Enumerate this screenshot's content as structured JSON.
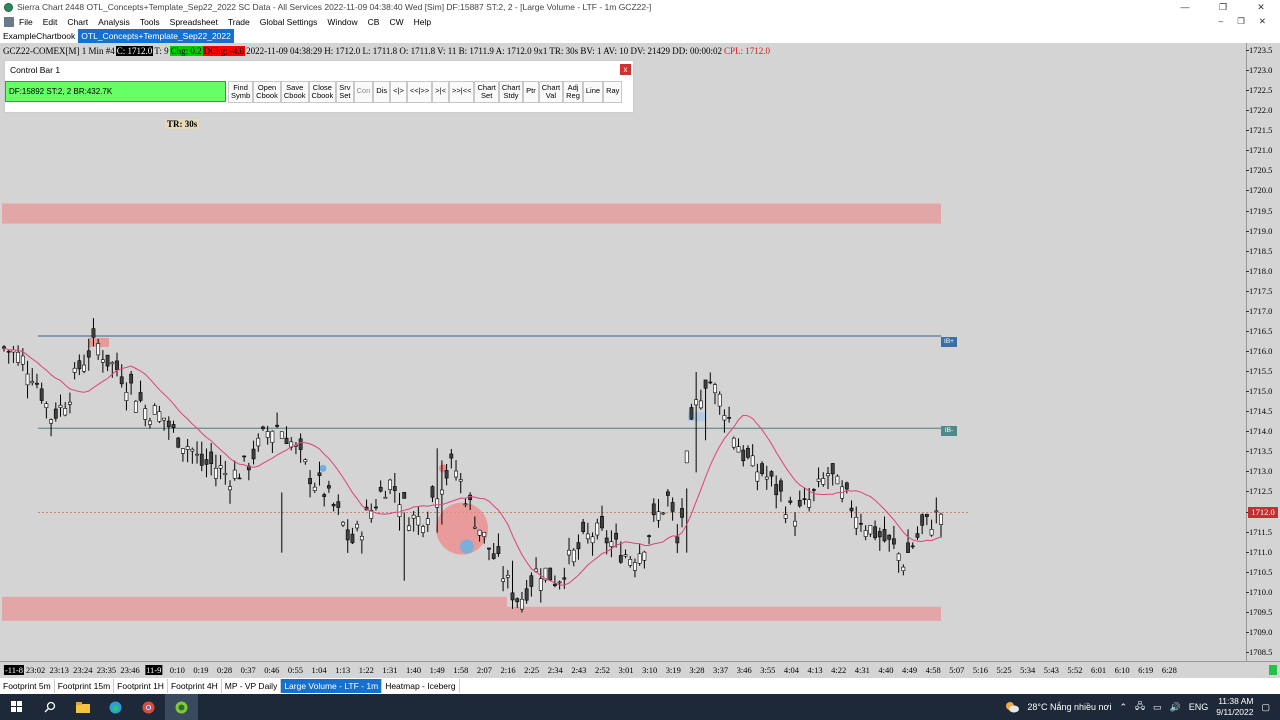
{
  "window": {
    "title": "Sierra Chart 2448 OTL_Concepts+Template_Sep22_2022  SC Data - All Services 2022-11-09  04:38:40 Wed [Sim]  DF:15887  ST:2, 2 - [Large Volume - LTF - 1m GCZ22-]",
    "controls": [
      "—",
      "❐",
      "✕"
    ]
  },
  "menu": {
    "items": [
      "File",
      "Edit",
      "Chart",
      "Analysis",
      "Tools",
      "Spreadsheet",
      "Trade",
      "Global Settings",
      "Window",
      "CB",
      "CW",
      "Help"
    ],
    "right_controls": [
      "–",
      "❐",
      "✕"
    ]
  },
  "chartbook_tabs": [
    {
      "label": "ExampleChartbook",
      "active": false
    },
    {
      "label": "OTL_Concepts+Template_Sep22_2022",
      "active": true
    }
  ],
  "infobar": {
    "symbol": "GCZ22-COMEX[M]  1 Min  #4",
    "close": "C: 1712.0",
    "t": "T: 9",
    "chg": "Chg: 0.2",
    "dchg": "DChg: -4.0",
    "details": "2022-11-09  04:38:29 H: 1712.0 L: 1711.8 O: 1711.8 V: 11 B: 1711.9 A: 1712.0 9x1 TR: 30s BV: 1 AV: 10 DV: 21429 DD: 00:00:02",
    "cpl": "CPL: 1712.0"
  },
  "control_bar": {
    "title": "Control Bar 1",
    "close": "x",
    "status": "DF:15892  ST:2, 2  BR:432.7K",
    "buttons": [
      {
        "label": "Find Symb",
        "two": [
          "Find",
          "Symb"
        ]
      },
      {
        "label": "Open Cbook",
        "two": [
          "Open",
          "Cbook"
        ]
      },
      {
        "label": "Save Cbook",
        "two": [
          "Save",
          "Cbook"
        ]
      },
      {
        "label": "Close Cbook",
        "two": [
          "Close",
          "Cbook"
        ]
      },
      {
        "label": "Srv Set",
        "two": [
          "Srv",
          "Set"
        ]
      },
      {
        "label": "Con",
        "dim": true
      },
      {
        "label": "Dis"
      },
      {
        "label": "<|>"
      },
      {
        "label": "<<|>>"
      },
      {
        "label": ">|<"
      },
      {
        "label": ">>|<<"
      },
      {
        "label": "Chart Set",
        "two": [
          "Chart",
          "Set"
        ]
      },
      {
        "label": "Chart Stdy",
        "two": [
          "Chart",
          "Stdy"
        ]
      },
      {
        "label": "Ptr"
      },
      {
        "label": "Chart Val",
        "two": [
          "Chart",
          "Val"
        ]
      },
      {
        "label": "Adj Reg",
        "two": [
          "Adj",
          "Reg"
        ]
      },
      {
        "label": "Line"
      },
      {
        "label": "Ray"
      }
    ]
  },
  "tr_label": "TR: 30s",
  "price_axis": {
    "ticks": [
      "1723.5",
      "1723.0",
      "1722.5",
      "1722.0",
      "1721.5",
      "1721.0",
      "1720.5",
      "1720.0",
      "1719.5",
      "1719.0",
      "1718.5",
      "1718.0",
      "1717.5",
      "1717.0",
      "1716.5",
      "1716.0",
      "1715.5",
      "1715.0",
      "1714.5",
      "1714.0",
      "1713.5",
      "1713.0",
      "1712.5",
      "1712.0",
      "1711.5",
      "1711.0",
      "1710.5",
      "1710.0",
      "1709.5",
      "1709.0",
      "1708.5"
    ],
    "current": "1712.0",
    "ylim": [
      1708.3,
      1723.7
    ]
  },
  "time_axis": {
    "ticks": [
      "-11-8",
      "23:02",
      "23:13",
      "23:24",
      "23:35",
      "23:46",
      "11-9",
      "0:10",
      "0:19",
      "0:28",
      "0:37",
      "0:46",
      "0:55",
      "1:04",
      "1:13",
      "1:22",
      "1:31",
      "1:40",
      "1:49",
      "1:58",
      "2:07",
      "2:16",
      "2:25",
      "2:34",
      "2:43",
      "2:52",
      "3:01",
      "3:10",
      "3:19",
      "3:28",
      "3:37",
      "3:46",
      "3:55",
      "4:04",
      "4:13",
      "4:22",
      "4:31",
      "4:40",
      "4:49",
      "4:58",
      "5:07",
      "5:16",
      "5:25",
      "5:34",
      "5:43",
      "5:52",
      "6:01",
      "6:10",
      "6:19",
      "6:28"
    ],
    "highlighted": [
      "-11-8",
      "11-9"
    ]
  },
  "chart_data": {
    "type": "candlestick",
    "symbol": "GCZ22",
    "zones": [
      {
        "type": "supply",
        "low": 1719.2,
        "high": 1719.7,
        "color": "#e3a6a6"
      },
      {
        "type": "demand",
        "low": 1709.3,
        "high": 1709.7,
        "color": "#e3a6a6"
      }
    ],
    "levels": [
      {
        "label": "IB+",
        "price": 1716.4,
        "color": "#2f5f8f"
      },
      {
        "label": "IB-",
        "price": 1714.1,
        "color": "#4f7f7f"
      },
      {
        "label": "CPL",
        "price": 1712.0,
        "color": "#c07050"
      }
    ],
    "series_close": [
      1716.1,
      1716.0,
      1715.8,
      1715.5,
      1715.0,
      1714.4,
      1714.6,
      1715.0,
      1715.6,
      1716.0,
      1716.2,
      1715.8,
      1715.6,
      1715.3,
      1715.0,
      1714.6,
      1714.5,
      1714.4,
      1714.0,
      1713.8,
      1713.6,
      1713.2,
      1713.2,
      1713.1,
      1712.9,
      1713.0,
      1713.2,
      1713.6,
      1714.0,
      1714.2,
      1714.0,
      1713.6,
      1713.2,
      1712.8,
      1712.6,
      1712.2,
      1711.8,
      1711.2,
      1711.6,
      1712.0,
      1712.4,
      1712.8,
      1712.5,
      1712.0,
      1711.8,
      1712.0,
      1712.5,
      1712.9,
      1713.2,
      1712.6,
      1712.0,
      1711.5,
      1711.0,
      1710.6,
      1710.1,
      1709.8,
      1710.2,
      1710.6,
      1710.5,
      1710.3,
      1710.7,
      1711.0,
      1711.3,
      1711.5,
      1711.4,
      1711.2,
      1711.0,
      1710.9,
      1711.1,
      1711.6,
      1712.0,
      1712.4,
      1711.0,
      1713.6,
      1714.8,
      1715.4,
      1715.0,
      1714.6,
      1713.9,
      1713.4,
      1713.1,
      1713.0,
      1712.7,
      1712.4,
      1712.0,
      1712.0,
      1712.3,
      1712.6,
      1713.0,
      1712.6,
      1712.3,
      1712.0,
      1711.7,
      1711.5,
      1711.3,
      1711.1,
      1710.8,
      1711.2,
      1711.6,
      1711.8,
      1712.0
    ]
  }
}
